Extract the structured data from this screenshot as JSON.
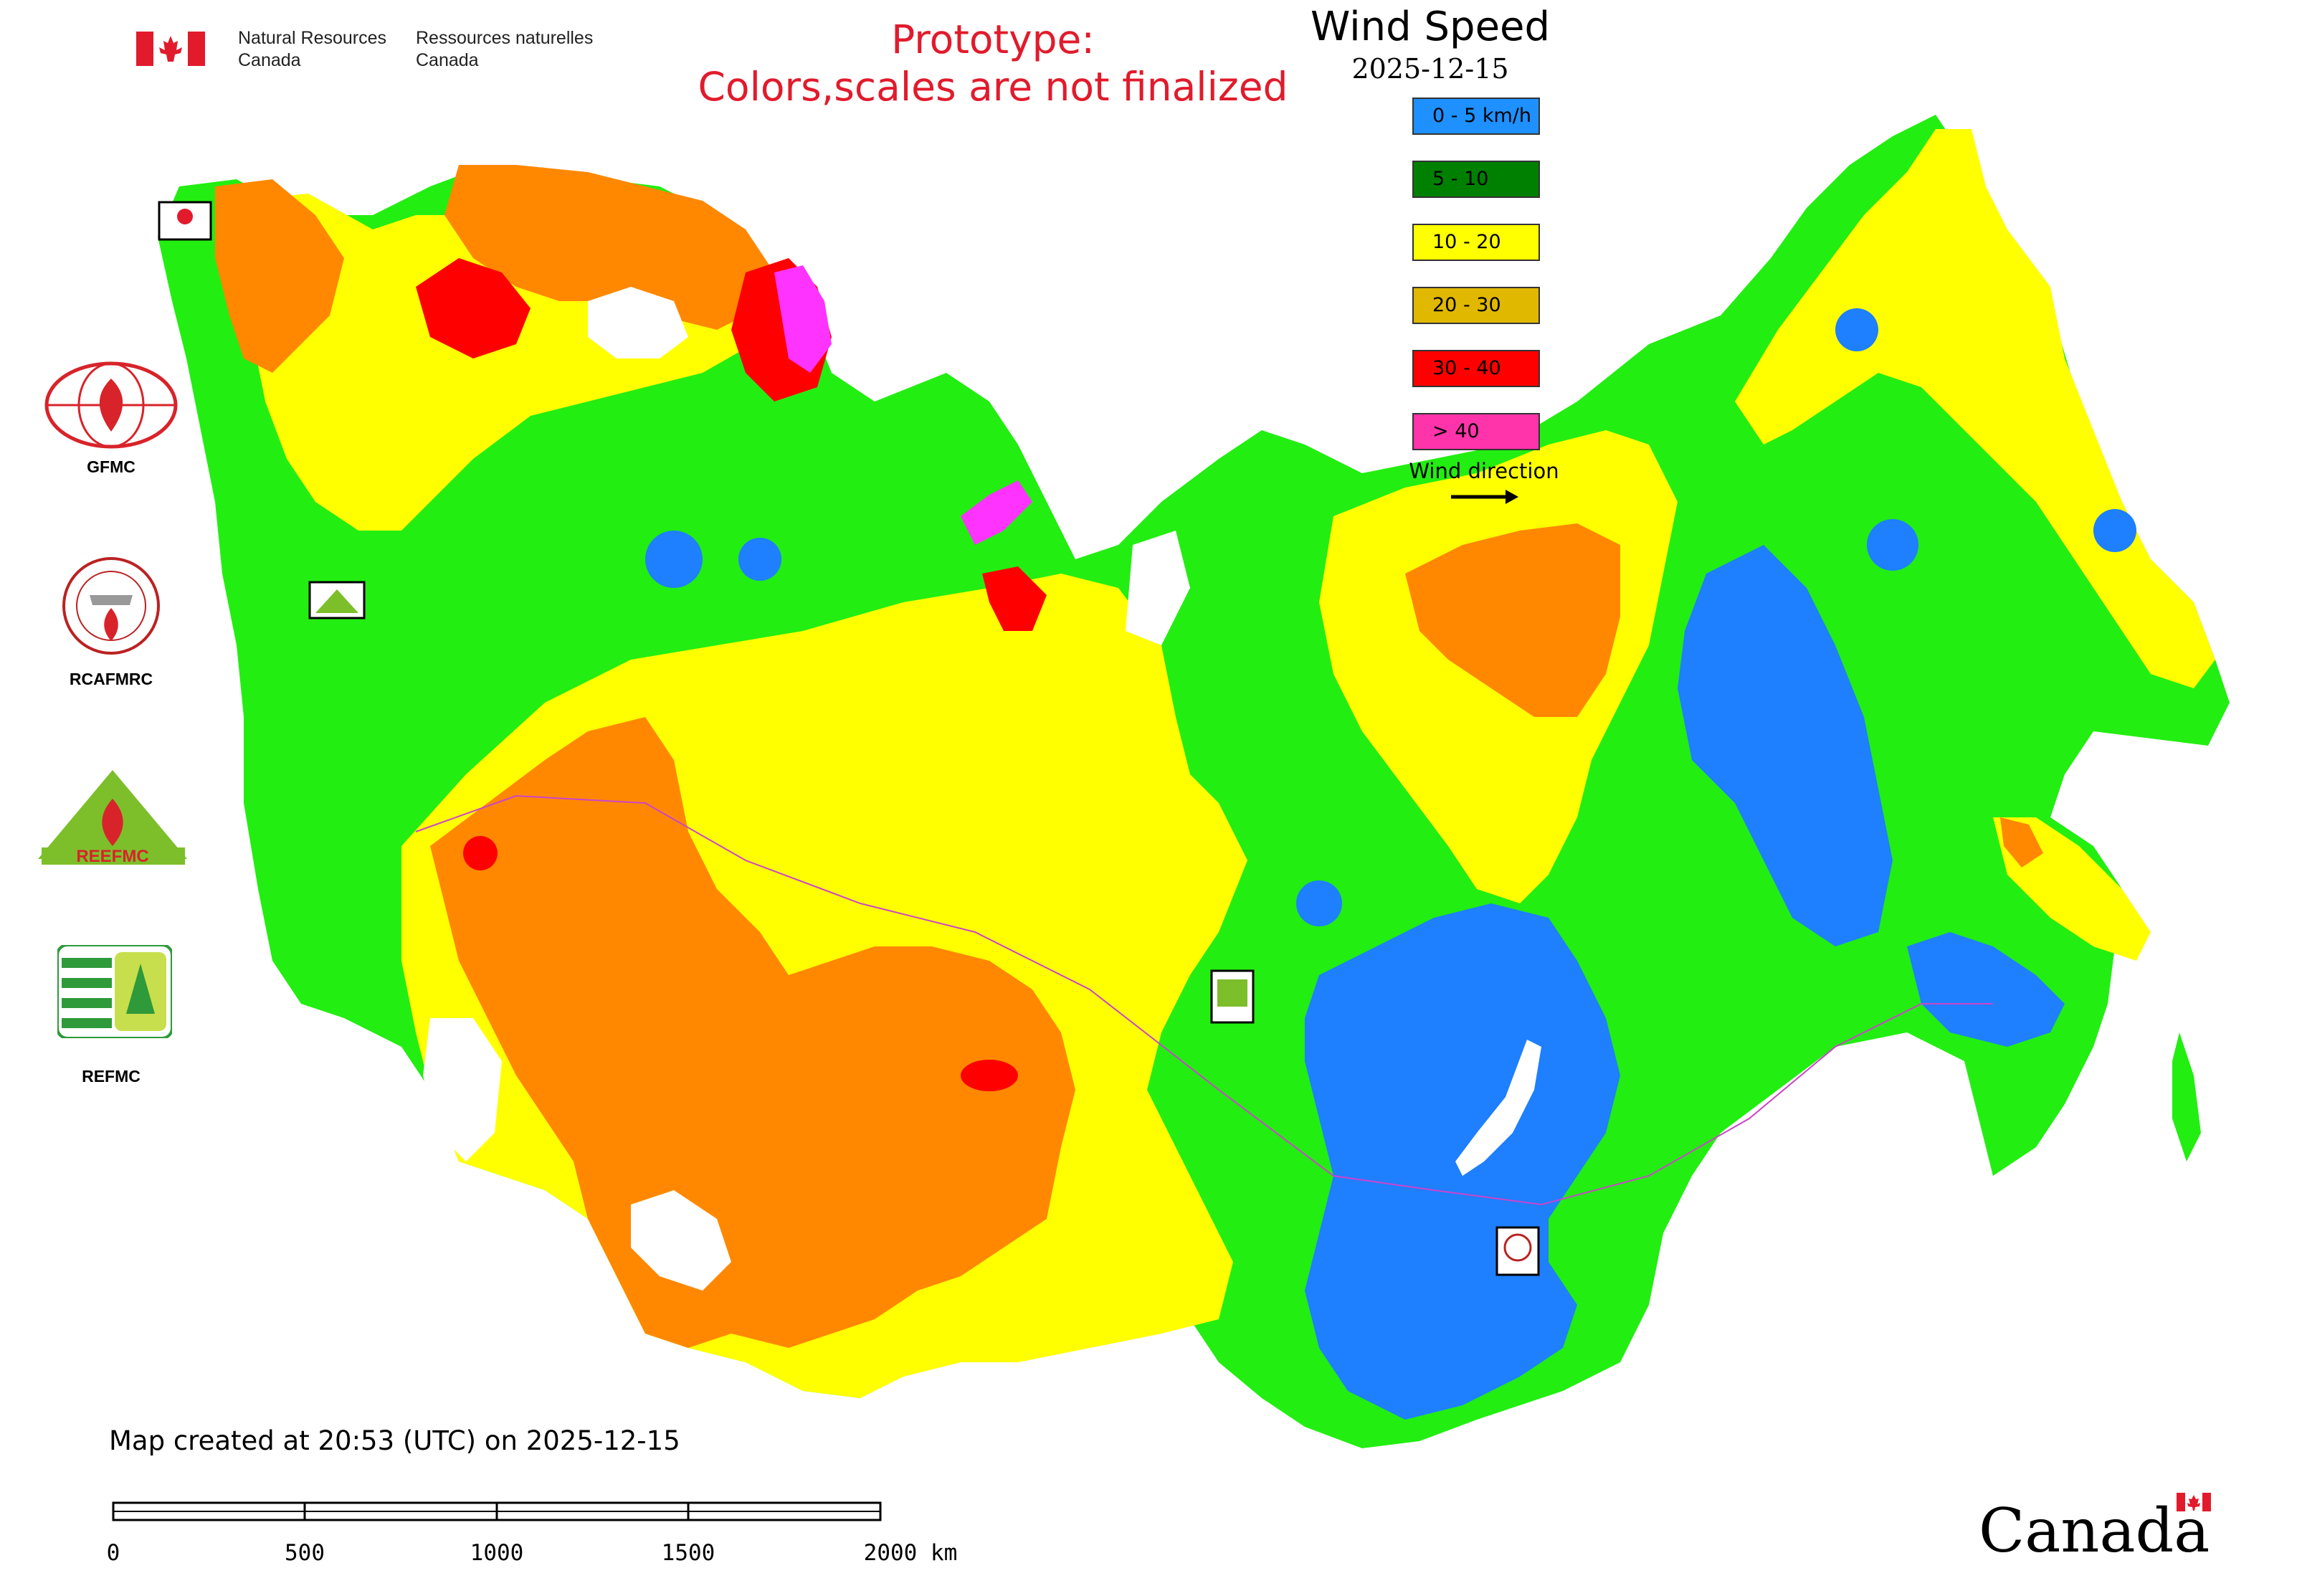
{
  "header": {
    "nrcan_en": "Natural Resources\nCanada",
    "nrcan_fr": "Ressources naturelles\nCanada",
    "prototype_line1": "Prototype:",
    "prototype_line2": "Colors,scales are not finalized",
    "title": "Wind Speed",
    "date": "2025-12-15"
  },
  "legend": {
    "items": [
      {
        "label": "0 - 5 km/h",
        "color": "#1e90ff"
      },
      {
        "label": "5 - 10",
        "color": "#008000"
      },
      {
        "label": "10 - 20",
        "color": "#ffff00"
      },
      {
        "label": "20 - 30",
        "color": "#e0b800"
      },
      {
        "label": "30 - 40",
        "color": "#ff0000"
      },
      {
        "label": "> 40",
        "color": "#ff33aa"
      }
    ],
    "wind_direction_label": "Wind direction"
  },
  "map_colors": {
    "calm": "#1e7fff",
    "light": "#22ee11",
    "moderate": "#ffff00",
    "fresh": "#ff8800",
    "strong": "#ff0000",
    "gale": "#ff33ff"
  },
  "partners": [
    "GFMC",
    "RCAFMRC",
    "REEFMC",
    "REFMC"
  ],
  "footer": {
    "created": "Map created at 20:53 (UTC) on 2025-12-15",
    "scale_ticks": [
      "0",
      "500",
      "1000",
      "1500",
      "2000 km"
    ],
    "canada_wordmark": "Canada"
  }
}
